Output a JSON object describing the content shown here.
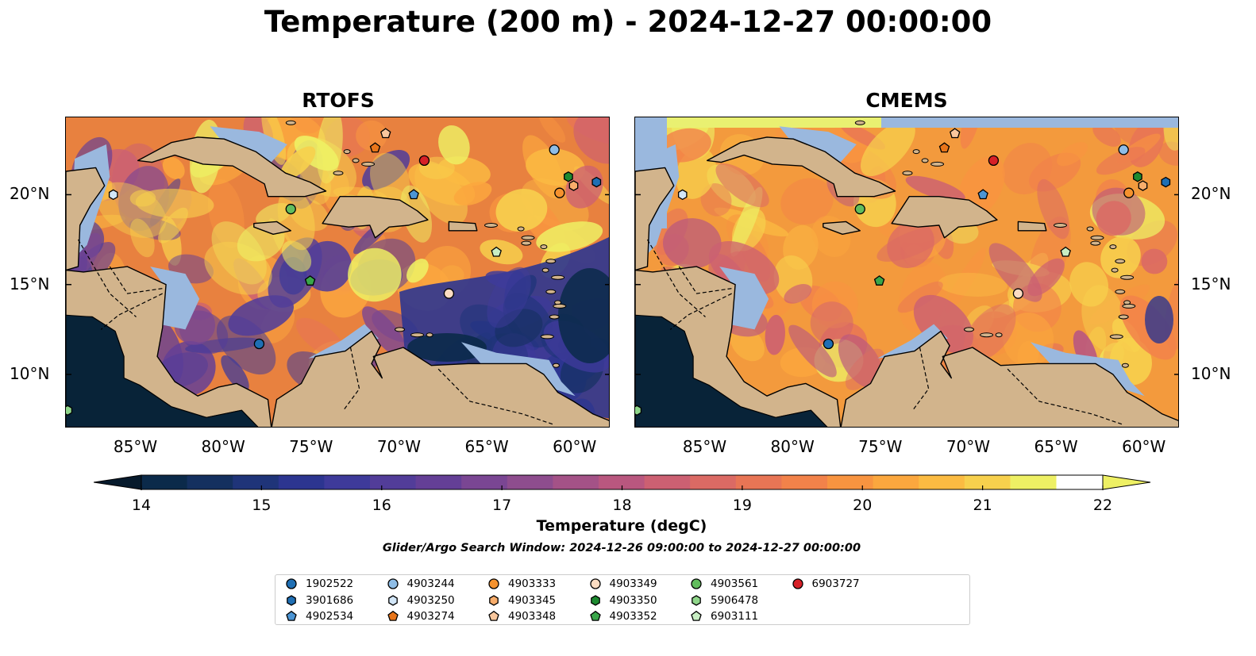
{
  "title": "Temperature (200 m) - 2024-12-27 00:00:00",
  "panels": [
    {
      "id": "rtofs",
      "title": "RTOFS"
    },
    {
      "id": "cmems",
      "title": "CMEMS"
    }
  ],
  "lon_ticks": [
    "85°W",
    "80°W",
    "75°W",
    "70°W",
    "65°W",
    "60°W"
  ],
  "lat_ticks": [
    "20°N",
    "15°N",
    "10°N"
  ],
  "colorbar": {
    "label": "Temperature (degC)",
    "ticks": [
      "14",
      "15",
      "16",
      "17",
      "18",
      "19",
      "20",
      "21",
      "22"
    ],
    "min": 14,
    "max": 22,
    "step": 0.5,
    "colors": [
      "#0b2a4a",
      "#14305f",
      "#1f3479",
      "#2c3590",
      "#3e3a9a",
      "#523d99",
      "#643f96",
      "#7a4693",
      "#8e4d8e",
      "#a45287",
      "#b9577f",
      "#cc6072",
      "#db6a64",
      "#e87555",
      "#f2824a",
      "#f89440",
      "#fba73e",
      "#fbbb42",
      "#f7d04d",
      "#eef064"
    ]
  },
  "search_window": "Glider/Argo Search Window: 2024-12-26 09:00:00 to 2024-12-27 00:00:00",
  "legend": [
    {
      "name": "1902522",
      "marker": "circle",
      "color": "#1f6fb4"
    },
    {
      "name": "3901686",
      "marker": "hexagon",
      "color": "#1f6fb4"
    },
    {
      "name": "4902534",
      "marker": "pentagon",
      "color": "#4c95d4"
    },
    {
      "name": "4903244",
      "marker": "circle",
      "color": "#8fbde6"
    },
    {
      "name": "4903250",
      "marker": "hexagon",
      "color": "#d2e6f7"
    },
    {
      "name": "4903274",
      "marker": "pentagon",
      "color": "#e8751a"
    },
    {
      "name": "4903333",
      "marker": "circle",
      "color": "#f5922e"
    },
    {
      "name": "4903345",
      "marker": "hexagon",
      "color": "#f8ad6b"
    },
    {
      "name": "4903348",
      "marker": "pentagon",
      "color": "#f9c79d"
    },
    {
      "name": "4903349",
      "marker": "circle",
      "color": "#fbdcc2"
    },
    {
      "name": "4903350",
      "marker": "hexagon",
      "color": "#1d8a30"
    },
    {
      "name": "4903352",
      "marker": "pentagon",
      "color": "#3aa64a"
    },
    {
      "name": "4903561",
      "marker": "circle",
      "color": "#62bd5d"
    },
    {
      "name": "5906478",
      "marker": "hexagon",
      "color": "#8fd68a"
    },
    {
      "name": "6903111",
      "marker": "pentagon",
      "color": "#c8eec3"
    },
    {
      "name": "6903727",
      "marker": "circle",
      "color": "#d62027"
    }
  ],
  "floats": [
    {
      "name": "1902522",
      "lon": -78.0,
      "lat": 11.7
    },
    {
      "name": "3901686",
      "lon": -58.8,
      "lat": 20.7
    },
    {
      "name": "4902534",
      "lon": -69.2,
      "lat": 20.0
    },
    {
      "name": "4903244",
      "lon": -61.2,
      "lat": 22.5
    },
    {
      "name": "4903250",
      "lon": -86.3,
      "lat": 20.0
    },
    {
      "name": "4903274",
      "lon": -71.4,
      "lat": 22.6
    },
    {
      "name": "4903333",
      "lon": -60.9,
      "lat": 20.1
    },
    {
      "name": "4903345",
      "lon": -60.1,
      "lat": 20.5
    },
    {
      "name": "4903348",
      "lon": -70.8,
      "lat": 23.4
    },
    {
      "name": "4903349",
      "lon": -67.2,
      "lat": 14.5
    },
    {
      "name": "4903350",
      "lon": -60.4,
      "lat": 21.0
    },
    {
      "name": "4903352",
      "lon": -75.1,
      "lat": 15.2
    },
    {
      "name": "4903561",
      "lon": -76.2,
      "lat": 19.2
    },
    {
      "name": "5906478",
      "lon": -88.9,
      "lat": 8.0
    },
    {
      "name": "6903111",
      "lon": -64.5,
      "lat": 16.8
    },
    {
      "name": "6903727",
      "lon": -68.6,
      "lat": 21.9
    }
  ]
}
